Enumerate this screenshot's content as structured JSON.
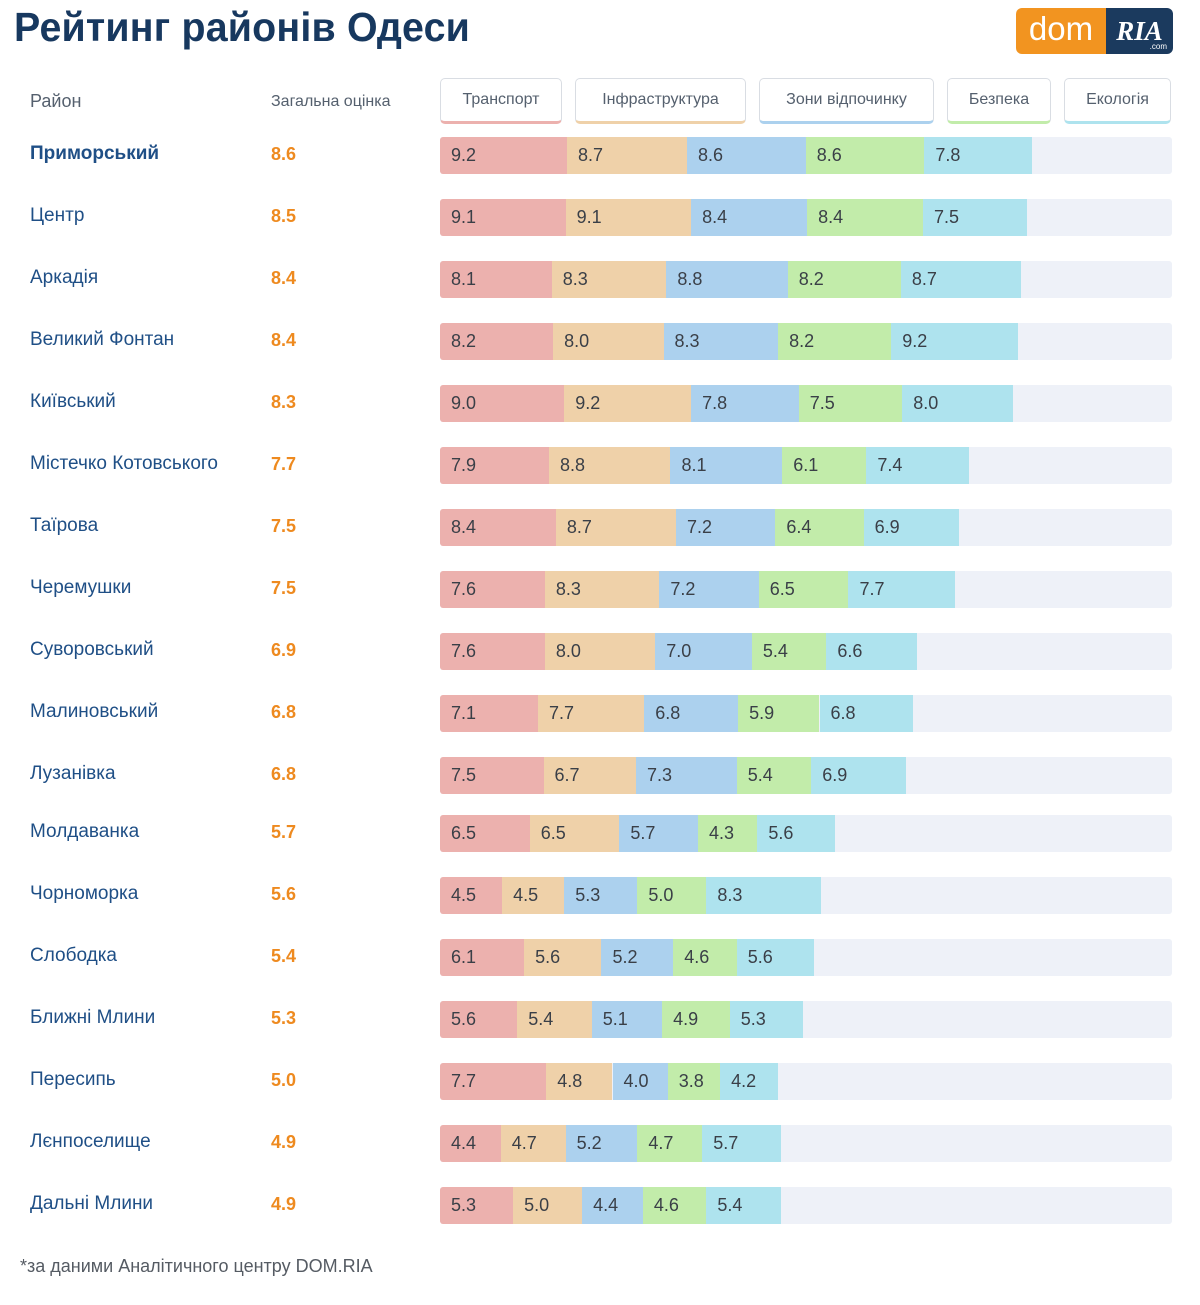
{
  "header": {
    "title": "Рейтинг районів Одеси"
  },
  "logo": {
    "left_text": "dom",
    "right_text": "RIA",
    "suffix": ".com"
  },
  "columns": {
    "district": "Район",
    "overall": "Загальна оцінка"
  },
  "footnote": "*за даними Аналітичного центру DOM.RIA",
  "chart_data": {
    "type": "bar",
    "stacked": true,
    "orientation": "horizontal",
    "title": "Рейтинг районів Одеси",
    "categories": [
      "Приморський",
      "Центр",
      "Аркадія",
      "Великий Фонтан",
      "Київський",
      "Містечко Котовського",
      "Таїрова",
      "Черемушки",
      "Суворовський",
      "Малиновський",
      "Лузанівка",
      "Молдаванка",
      "Чорноморка",
      "Слободка",
      "Ближні Млини",
      "Пересипь",
      "Лєнпоселище",
      "Дальні Млини"
    ],
    "overall": [
      "8.6",
      "8.5",
      "8.4",
      "8.4",
      "8.3",
      "7.7",
      "7.5",
      "7.5",
      "6.9",
      "6.8",
      "6.8",
      "5.7",
      "5.6",
      "5.4",
      "5.3",
      "5.0",
      "4.9",
      "4.9"
    ],
    "series": [
      {
        "name": "Транспорт",
        "color": "#ecb1ae",
        "values": [
          9.2,
          9.1,
          8.1,
          8.2,
          9.0,
          7.9,
          8.4,
          7.6,
          7.6,
          7.1,
          7.5,
          6.5,
          4.5,
          6.1,
          5.6,
          7.7,
          4.4,
          5.3
        ]
      },
      {
        "name": "Інфраструктура",
        "color": "#efd1a9",
        "values": [
          8.7,
          9.1,
          8.3,
          8.0,
          9.2,
          8.8,
          8.7,
          8.3,
          8.0,
          7.7,
          6.7,
          6.5,
          4.5,
          5.6,
          5.4,
          4.8,
          4.7,
          5.0
        ]
      },
      {
        "name": "Зони відпочинку",
        "color": "#acd1ee",
        "values": [
          8.6,
          8.4,
          8.8,
          8.3,
          7.8,
          8.1,
          7.2,
          7.2,
          7.0,
          6.8,
          7.3,
          5.7,
          5.3,
          5.2,
          5.1,
          4.0,
          5.2,
          4.4
        ]
      },
      {
        "name": "Безпека",
        "color": "#c2ecaa",
        "values": [
          8.6,
          8.4,
          8.2,
          8.2,
          7.5,
          6.1,
          6.4,
          6.5,
          5.4,
          5.9,
          5.4,
          4.3,
          5.0,
          4.6,
          4.9,
          3.8,
          4.7,
          4.6
        ]
      },
      {
        "name": "Екологія",
        "color": "#aee3ee",
        "values": [
          7.8,
          7.5,
          8.7,
          9.2,
          8.0,
          7.4,
          6.9,
          7.7,
          6.6,
          6.8,
          6.9,
          5.6,
          8.3,
          5.6,
          5.3,
          4.2,
          5.7,
          5.4
        ]
      }
    ],
    "xlim": [
      0,
      50
    ]
  }
}
